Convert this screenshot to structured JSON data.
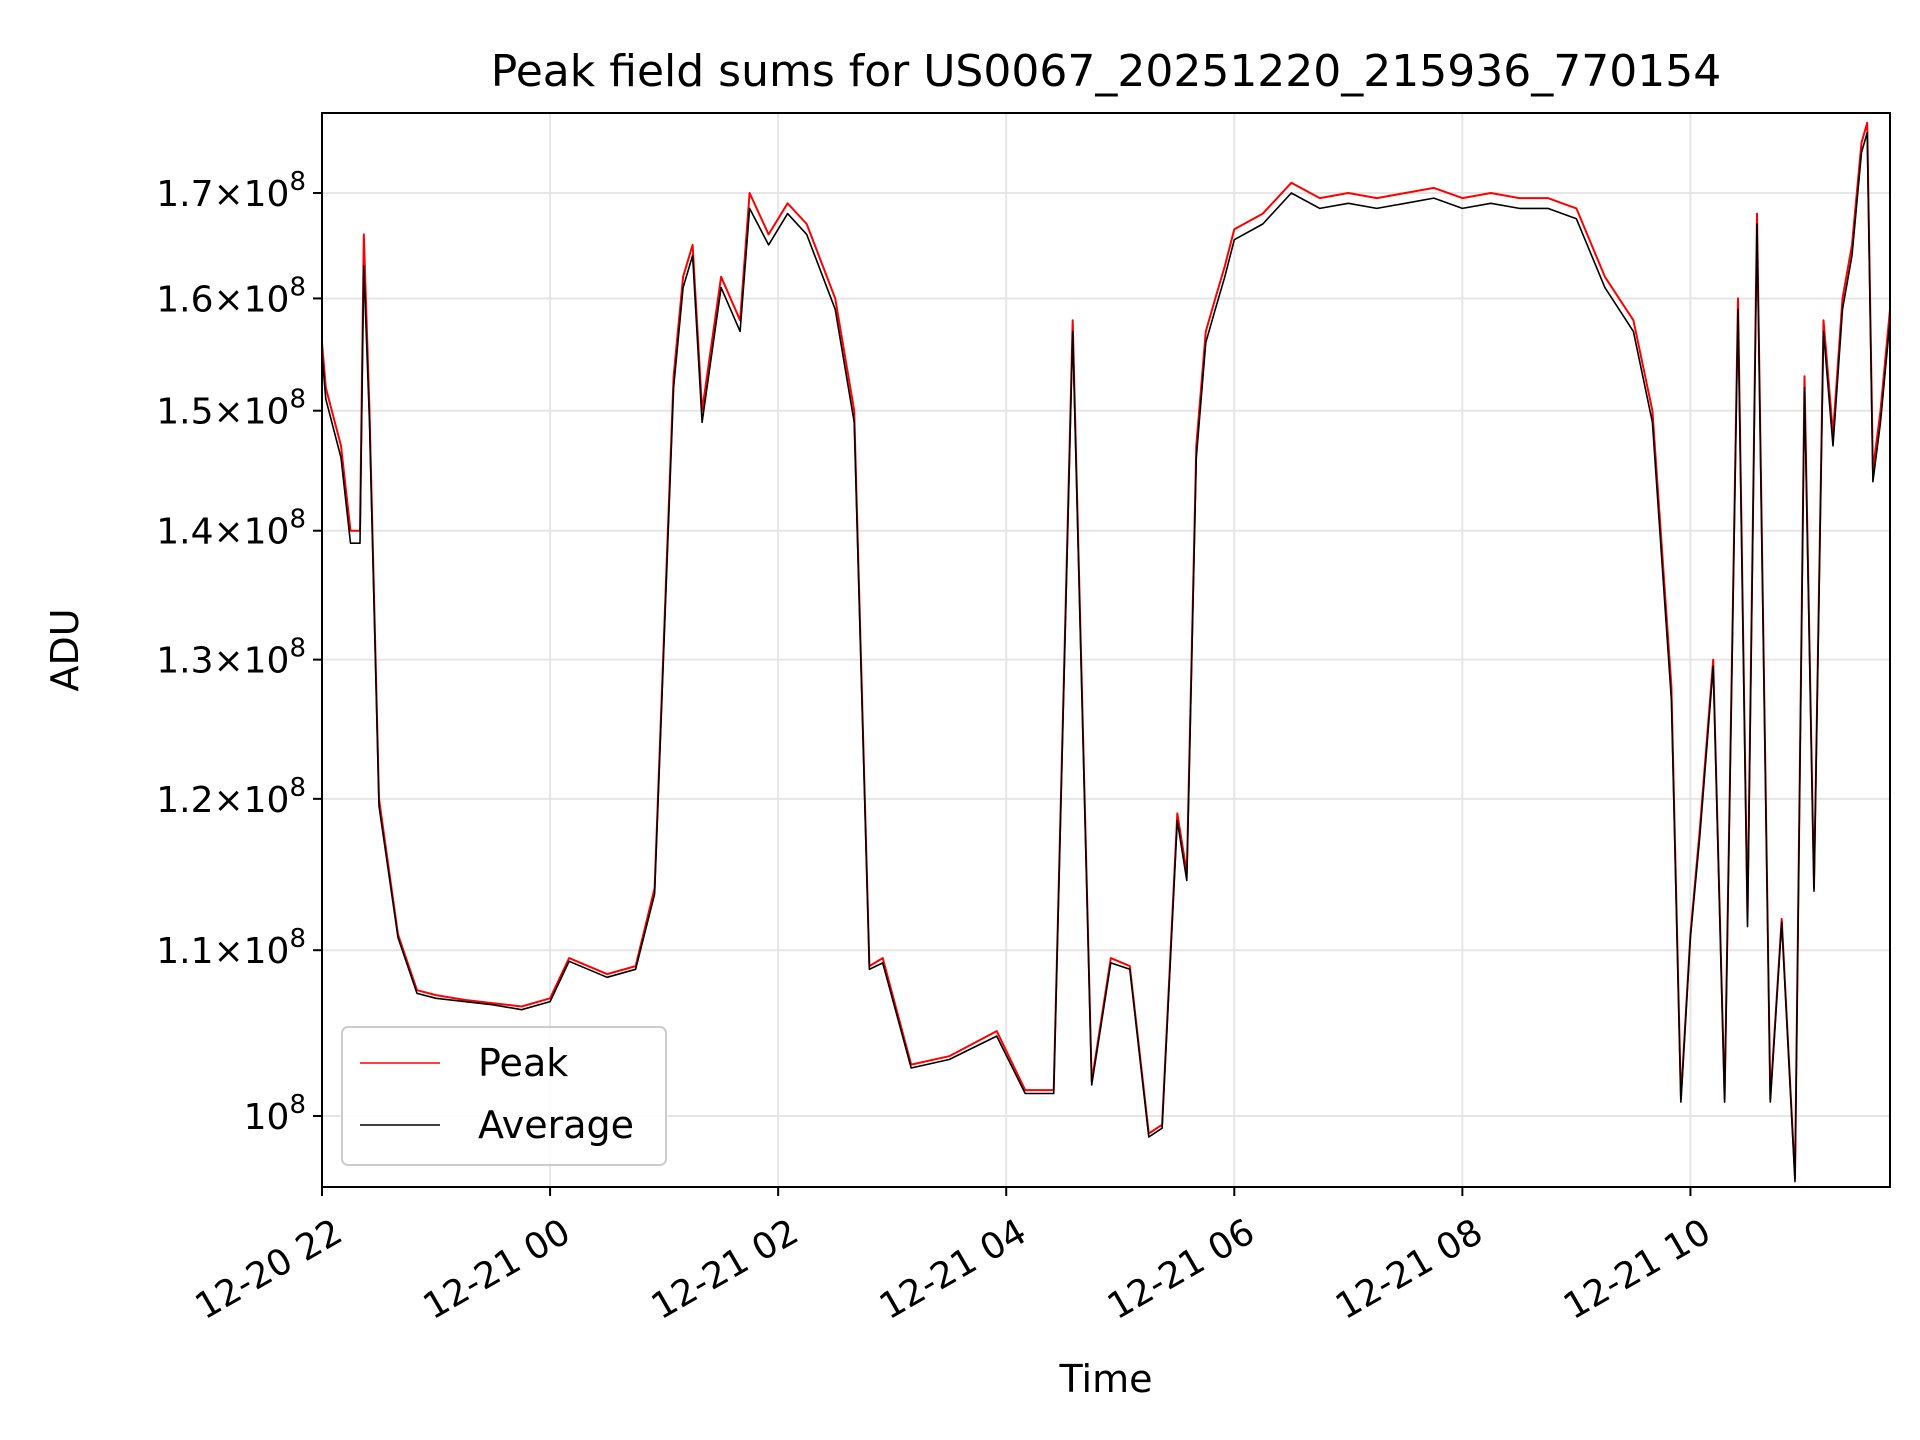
{
  "chart_data": {
    "type": "line",
    "title": "Peak field sums for US0067_20251220_215936_770154",
    "xlabel": "Time",
    "ylabel": "ADU",
    "y_scale": "log",
    "grid": true,
    "legend_placement": "lower-left",
    "xlim": [
      "2025-12-20 22:00",
      "2025-12-21 11:45"
    ],
    "ylim": [
      96000000,
      178000000
    ],
    "x_ticks": [
      "12-20 22",
      "12-21 00",
      "12-21 02",
      "12-21 04",
      "12-21 06",
      "12-21 08",
      "12-21 10"
    ],
    "y_ticks": [
      {
        "value": 100000000,
        "mant": "",
        "exp": "8"
      },
      {
        "value": 110000000,
        "mant": "1.1",
        "exp": "8"
      },
      {
        "value": 120000000,
        "mant": "1.2",
        "exp": "8"
      },
      {
        "value": 130000000,
        "mant": "1.3",
        "exp": "8"
      },
      {
        "value": 140000000,
        "mant": "1.4",
        "exp": "8"
      },
      {
        "value": 150000000,
        "mant": "1.5",
        "exp": "8"
      },
      {
        "value": 160000000,
        "mant": "1.6",
        "exp": "8"
      },
      {
        "value": 170000000,
        "mant": "1.7",
        "exp": "8"
      }
    ],
    "legend": {
      "peak_label": "Peak",
      "average_label": "Average"
    },
    "colors": {
      "peak": "#ff0000",
      "average": "#000000",
      "grid": "#e6e6e6"
    },
    "series": [
      {
        "name": "Peak",
        "color": "#ff0000",
        "x": [
          "2025-12-20 22:00",
          "2025-12-20 22:02",
          "2025-12-20 22:10",
          "2025-12-20 22:15",
          "2025-12-20 22:20",
          "2025-12-20 22:22",
          "2025-12-20 22:25",
          "2025-12-20 22:30",
          "2025-12-20 22:40",
          "2025-12-20 22:50",
          "2025-12-20 23:00",
          "2025-12-20 23:15",
          "2025-12-20 23:30",
          "2025-12-20 23:45",
          "2025-12-21 00:00",
          "2025-12-21 00:10",
          "2025-12-21 00:30",
          "2025-12-21 00:45",
          "2025-12-21 00:55",
          "2025-12-21 01:05",
          "2025-12-21 01:10",
          "2025-12-21 01:15",
          "2025-12-21 01:20",
          "2025-12-21 01:30",
          "2025-12-21 01:40",
          "2025-12-21 01:45",
          "2025-12-21 01:55",
          "2025-12-21 02:05",
          "2025-12-21 02:15",
          "2025-12-21 02:30",
          "2025-12-21 02:40",
          "2025-12-21 02:48",
          "2025-12-21 02:55",
          "2025-12-21 03:10",
          "2025-12-21 03:30",
          "2025-12-21 03:55",
          "2025-12-21 04:10",
          "2025-12-21 04:25",
          "2025-12-21 04:35",
          "2025-12-21 04:45",
          "2025-12-21 04:55",
          "2025-12-21 05:05",
          "2025-12-21 05:15",
          "2025-12-21 05:22",
          "2025-12-21 05:30",
          "2025-12-21 05:35",
          "2025-12-21 05:40",
          "2025-12-21 05:45",
          "2025-12-21 05:50",
          "2025-12-21 05:55",
          "2025-12-21 06:00",
          "2025-12-21 06:15",
          "2025-12-21 06:30",
          "2025-12-21 06:45",
          "2025-12-21 07:00",
          "2025-12-21 07:15",
          "2025-12-21 07:30",
          "2025-12-21 07:45",
          "2025-12-21 08:00",
          "2025-12-21 08:15",
          "2025-12-21 08:30",
          "2025-12-21 08:45",
          "2025-12-21 09:00",
          "2025-12-21 09:15",
          "2025-12-21 09:30",
          "2025-12-21 09:40",
          "2025-12-21 09:50",
          "2025-12-21 09:55",
          "2025-12-21 10:00",
          "2025-12-21 10:05",
          "2025-12-21 10:12",
          "2025-12-21 10:18",
          "2025-12-21 10:25",
          "2025-12-21 10:30",
          "2025-12-21 10:35",
          "2025-12-21 10:42",
          "2025-12-21 10:48",
          "2025-12-21 10:55",
          "2025-12-21 11:00",
          "2025-12-21 11:05",
          "2025-12-21 11:10",
          "2025-12-21 11:15",
          "2025-12-21 11:20",
          "2025-12-21 11:25",
          "2025-12-21 11:30",
          "2025-12-21 11:33",
          "2025-12-21 11:36",
          "2025-12-21 11:40",
          "2025-12-21 11:45"
        ],
        "values": [
          156000000,
          152000000,
          147000000,
          140000000,
          140000000,
          166000000,
          150000000,
          120000000,
          111000000,
          107500000,
          107200000,
          106900000,
          106700000,
          106500000,
          107000000,
          109500000,
          108500000,
          109000000,
          114000000,
          153000000,
          162000000,
          165000000,
          150000000,
          162000000,
          158000000,
          170000000,
          166000000,
          169000000,
          167000000,
          160000000,
          150000000,
          109000000,
          109500000,
          103000000,
          103500000,
          105000000,
          101500000,
          101500000,
          158000000,
          102000000,
          109500000,
          109000000,
          99000000,
          99500000,
          119000000,
          115000000,
          147000000,
          157000000,
          160000000,
          163000000,
          166500000,
          168000000,
          171000000,
          169500000,
          170000000,
          169500000,
          170000000,
          170500000,
          169500000,
          170000000,
          169500000,
          169500000,
          168500000,
          162000000,
          158000000,
          150000000,
          128000000,
          101000000,
          111000000,
          118000000,
          130000000,
          101000000,
          160000000,
          112000000,
          168000000,
          101000000,
          112000000,
          96500000,
          153000000,
          114000000,
          158000000,
          148000000,
          160000000,
          165000000,
          175000000,
          177000000,
          145000000,
          150000000,
          159000000
        ]
      },
      {
        "name": "Average",
        "color": "#000000",
        "x": [
          "2025-12-20 22:00",
          "2025-12-20 22:02",
          "2025-12-20 22:10",
          "2025-12-20 22:15",
          "2025-12-20 22:20",
          "2025-12-20 22:22",
          "2025-12-20 22:25",
          "2025-12-20 22:30",
          "2025-12-20 22:40",
          "2025-12-20 22:50",
          "2025-12-20 23:00",
          "2025-12-20 23:15",
          "2025-12-20 23:30",
          "2025-12-20 23:45",
          "2025-12-21 00:00",
          "2025-12-21 00:10",
          "2025-12-21 00:30",
          "2025-12-21 00:45",
          "2025-12-21 00:55",
          "2025-12-21 01:05",
          "2025-12-21 01:10",
          "2025-12-21 01:15",
          "2025-12-21 01:20",
          "2025-12-21 01:30",
          "2025-12-21 01:40",
          "2025-12-21 01:45",
          "2025-12-21 01:55",
          "2025-12-21 02:05",
          "2025-12-21 02:15",
          "2025-12-21 02:30",
          "2025-12-21 02:40",
          "2025-12-21 02:48",
          "2025-12-21 02:55",
          "2025-12-21 03:10",
          "2025-12-21 03:30",
          "2025-12-21 03:55",
          "2025-12-21 04:10",
          "2025-12-21 04:25",
          "2025-12-21 04:35",
          "2025-12-21 04:45",
          "2025-12-21 04:55",
          "2025-12-21 05:05",
          "2025-12-21 05:15",
          "2025-12-21 05:22",
          "2025-12-21 05:30",
          "2025-12-21 05:35",
          "2025-12-21 05:40",
          "2025-12-21 05:45",
          "2025-12-21 05:50",
          "2025-12-21 05:55",
          "2025-12-21 06:00",
          "2025-12-21 06:15",
          "2025-12-21 06:30",
          "2025-12-21 06:45",
          "2025-12-21 07:00",
          "2025-12-21 07:15",
          "2025-12-21 07:30",
          "2025-12-21 07:45",
          "2025-12-21 08:00",
          "2025-12-21 08:15",
          "2025-12-21 08:30",
          "2025-12-21 08:45",
          "2025-12-21 09:00",
          "2025-12-21 09:15",
          "2025-12-21 09:30",
          "2025-12-21 09:40",
          "2025-12-21 09:50",
          "2025-12-21 09:55",
          "2025-12-21 10:00",
          "2025-12-21 10:05",
          "2025-12-21 10:12",
          "2025-12-21 10:18",
          "2025-12-21 10:25",
          "2025-12-21 10:30",
          "2025-12-21 10:35",
          "2025-12-21 10:42",
          "2025-12-21 10:48",
          "2025-12-21 10:55",
          "2025-12-21 11:00",
          "2025-12-21 11:05",
          "2025-12-21 11:10",
          "2025-12-21 11:15",
          "2025-12-21 11:20",
          "2025-12-21 11:25",
          "2025-12-21 11:30",
          "2025-12-21 11:33",
          "2025-12-21 11:36",
          "2025-12-21 11:40",
          "2025-12-21 11:45"
        ],
        "values": [
          155000000,
          151000000,
          146000000,
          139000000,
          139000000,
          163000000,
          149000000,
          119500000,
          110800000,
          107300000,
          107000000,
          106800000,
          106600000,
          106300000,
          106800000,
          109300000,
          108300000,
          108800000,
          113600000,
          152000000,
          161000000,
          164000000,
          149000000,
          161000000,
          157000000,
          168500000,
          165000000,
          168000000,
          166000000,
          159000000,
          149000000,
          108800000,
          109200000,
          102800000,
          103300000,
          104700000,
          101300000,
          101300000,
          157000000,
          101800000,
          109200000,
          108800000,
          98800000,
          99300000,
          118500000,
          114500000,
          146000000,
          156000000,
          159000000,
          162000000,
          165500000,
          167000000,
          170000000,
          168500000,
          169000000,
          168500000,
          169000000,
          169500000,
          168500000,
          169000000,
          168500000,
          168500000,
          167500000,
          161000000,
          157000000,
          149000000,
          127000000,
          100800000,
          110800000,
          117500000,
          129500000,
          100800000,
          159000000,
          111500000,
          167000000,
          100800000,
          111800000,
          96300000,
          152000000,
          113800000,
          157000000,
          147000000,
          159000000,
          164000000,
          174000000,
          176000000,
          144000000,
          149000000,
          158000000
        ]
      }
    ]
  }
}
